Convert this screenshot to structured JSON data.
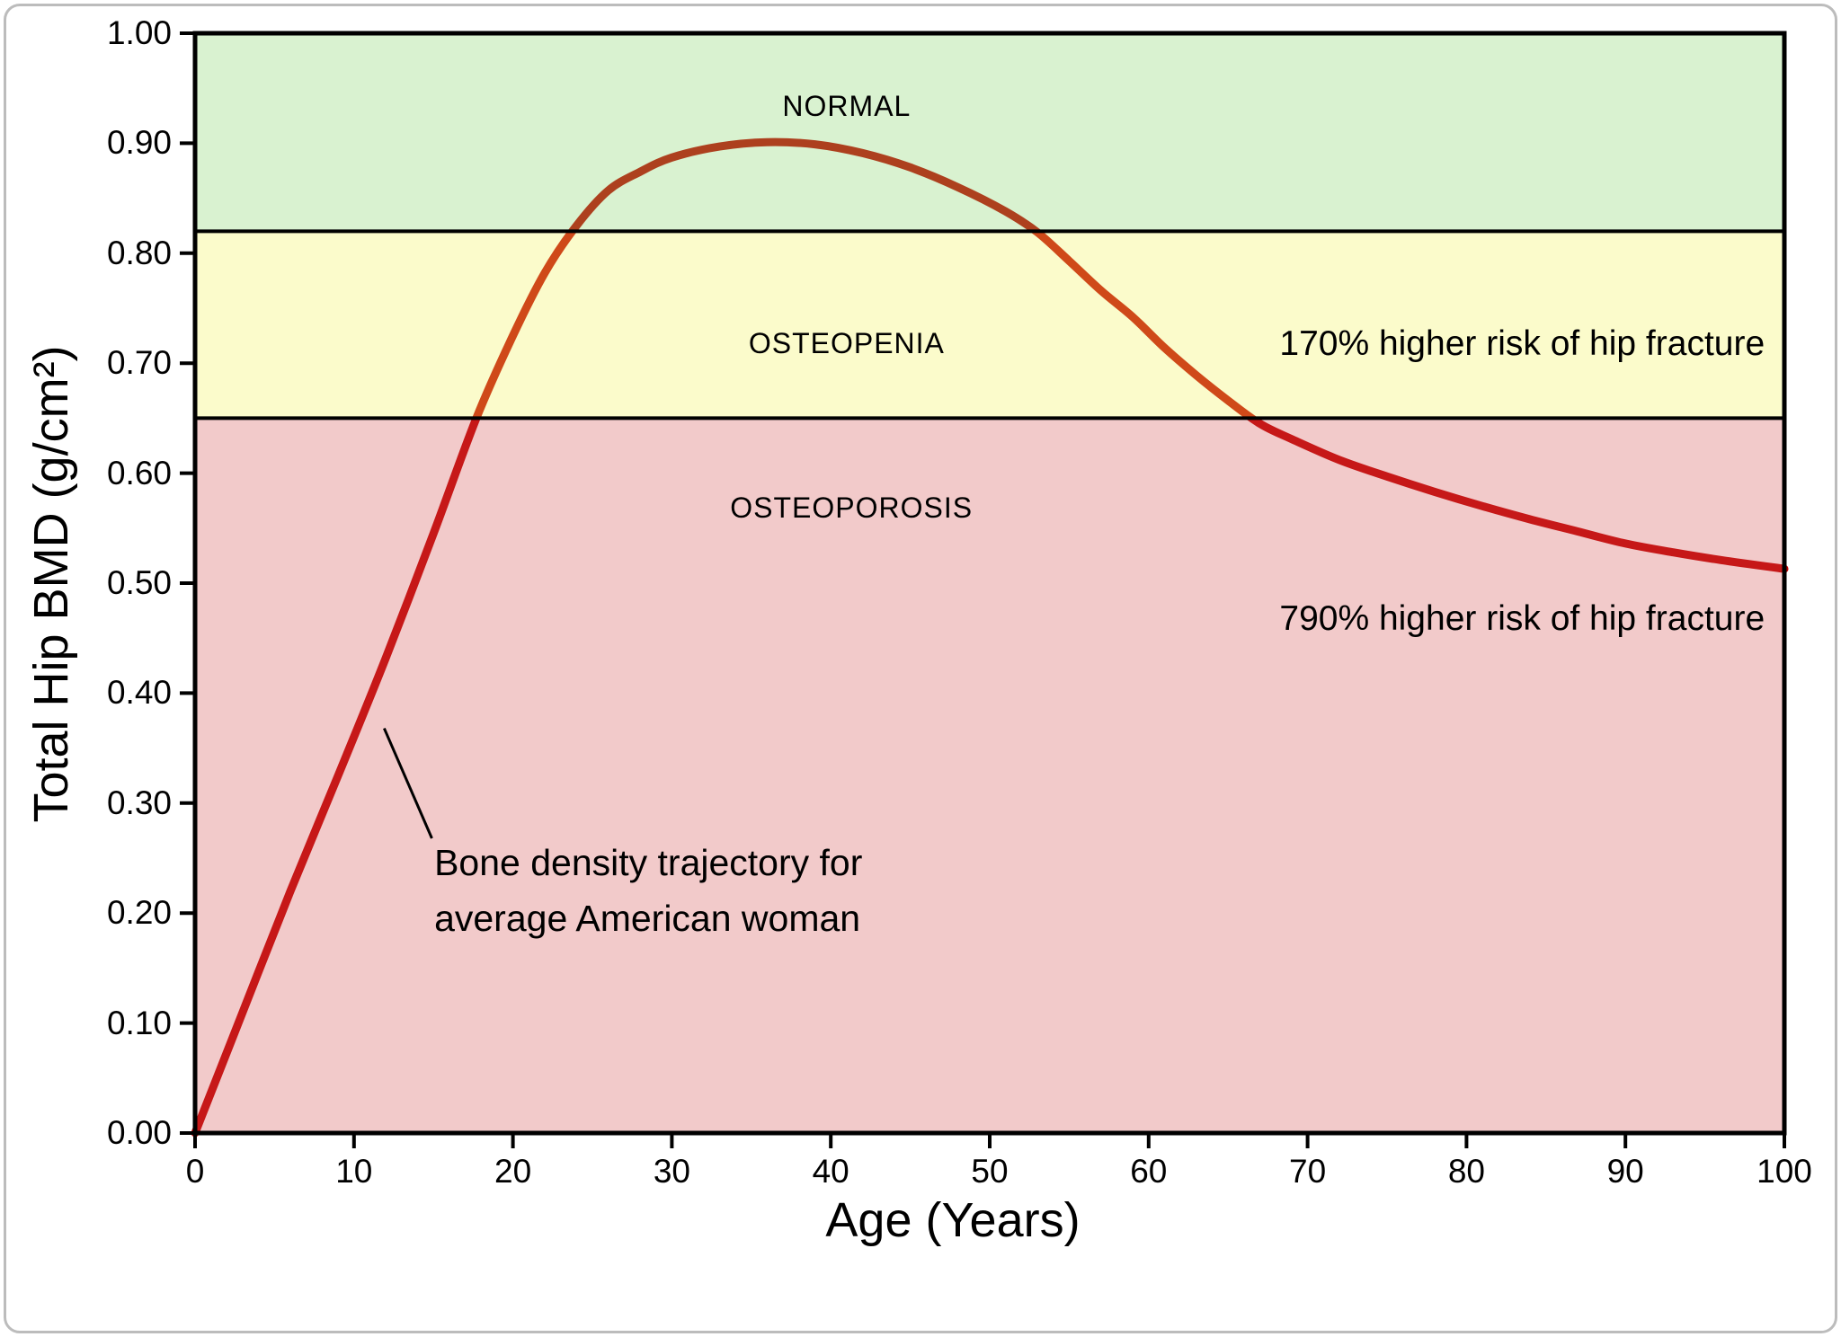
{
  "slide": {
    "background": "#ffffff",
    "border_color": "#bcbcbc"
  },
  "chart_data": {
    "type": "line",
    "title": "",
    "xlabel": "Age (Years)",
    "ylabel": "Total Hip BMD (g/cm²)",
    "xlim": [
      0,
      100
    ],
    "ylim": [
      0,
      1.0
    ],
    "grid": false,
    "legend": "none",
    "frame_color": "#000000",
    "x_ticks": [
      0,
      10,
      20,
      30,
      40,
      50,
      60,
      70,
      80,
      90,
      100
    ],
    "y_ticks": [
      {
        "value": 0.0,
        "label": "0.00"
      },
      {
        "value": 0.1,
        "label": "0.10"
      },
      {
        "value": 0.2,
        "label": "0.20"
      },
      {
        "value": 0.3,
        "label": "0.30"
      },
      {
        "value": 0.4,
        "label": "0.40"
      },
      {
        "value": 0.5,
        "label": "0.50"
      },
      {
        "value": 0.6,
        "label": "0.60"
      },
      {
        "value": 0.7,
        "label": "0.70"
      },
      {
        "value": 0.8,
        "label": "0.80"
      },
      {
        "value": 0.9,
        "label": "0.90"
      },
      {
        "value": 1.0,
        "label": "1.00"
      }
    ],
    "zone_boundaries": [
      0.82,
      0.65
    ],
    "zone_opacity": 0.3,
    "zones": [
      {
        "name": "normal",
        "label": "NORMAL",
        "bmd_range": [
          0.82,
          1.0
        ],
        "fill_rgb": "128,212,98",
        "label_at": {
          "age": 41.0,
          "bmd": 0.934
        }
      },
      {
        "name": "osteopenia",
        "label": "OSTEOPENIA",
        "bmd_range": [
          0.65,
          0.82
        ],
        "fill_rgb": "242,242,82",
        "label_at": {
          "age": 41.0,
          "bmd": 0.718
        }
      },
      {
        "name": "osteoporosis",
        "label": "OSTEOPOROSIS",
        "bmd_range": [
          0.0,
          0.65
        ],
        "fill_rgb": "212,78,78",
        "label_at": {
          "age": 41.3,
          "bmd": 0.569
        }
      }
    ],
    "series": [
      {
        "name": "Bone density trajectory for average American woman",
        "color": "#c00000",
        "points": [
          [
            0,
            0.0
          ],
          [
            3,
            0.11
          ],
          [
            6,
            0.22
          ],
          [
            9,
            0.325
          ],
          [
            12,
            0.432
          ],
          [
            15,
            0.545
          ],
          [
            17.7,
            0.65
          ],
          [
            20,
            0.725
          ],
          [
            22,
            0.782
          ],
          [
            24,
            0.825
          ],
          [
            26,
            0.857
          ],
          [
            28,
            0.874
          ],
          [
            30,
            0.887
          ],
          [
            33,
            0.897
          ],
          [
            36,
            0.901
          ],
          [
            39,
            0.899
          ],
          [
            42,
            0.891
          ],
          [
            45,
            0.878
          ],
          [
            48,
            0.86
          ],
          [
            51,
            0.838
          ],
          [
            53,
            0.819
          ],
          [
            55,
            0.793
          ],
          [
            57,
            0.766
          ],
          [
            59,
            0.742
          ],
          [
            61,
            0.714
          ],
          [
            63,
            0.689
          ],
          [
            65,
            0.666
          ],
          [
            67,
            0.645
          ],
          [
            69,
            0.631
          ],
          [
            72,
            0.612
          ],
          [
            75,
            0.597
          ],
          [
            78,
            0.583
          ],
          [
            81,
            0.57
          ],
          [
            84,
            0.558
          ],
          [
            87,
            0.547
          ],
          [
            90,
            0.536
          ],
          [
            93,
            0.528
          ],
          [
            96,
            0.521
          ],
          [
            100,
            0.513
          ]
        ]
      }
    ],
    "annotations": [
      {
        "id": "risk-osteopenia",
        "text": "170% higher risk of hip fracture",
        "at": {
          "age": 83.5,
          "bmd": 0.717
        }
      },
      {
        "id": "risk-osteoporosis",
        "text": "790% higher risk of hip fracture",
        "at": {
          "age": 83.5,
          "bmd": 0.467
        }
      },
      {
        "id": "trajectory-callout",
        "lines": [
          "Bone density trajectory for",
          "average American woman"
        ],
        "anchor": {
          "age": 15.05,
          "bmd_lines": [
            0.246,
            0.195
          ]
        },
        "leader": {
          "from": {
            "age": 11.9,
            "bmd": 0.368
          },
          "to": {
            "age": 14.9,
            "bmd": 0.268
          }
        }
      }
    ]
  }
}
